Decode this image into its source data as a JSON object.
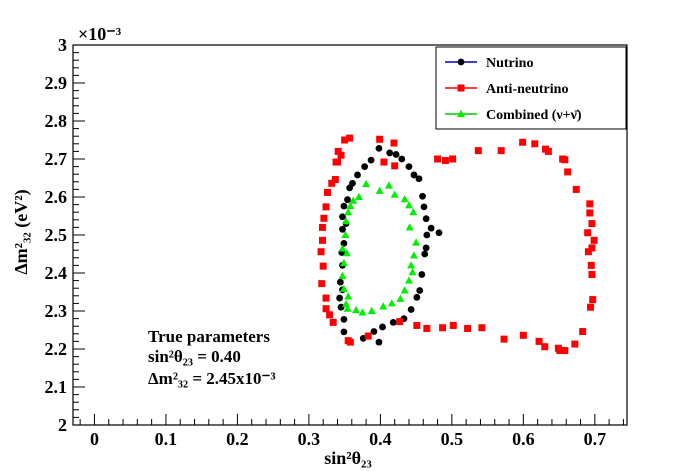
{
  "chart_data": {
    "type": "scatter",
    "xlabel": "sin²θ₂₃",
    "ylabel": "Δm²₃₂ (eV²)",
    "y_multiplier": "×10⁻³",
    "xlim": [
      -0.03,
      0.745
    ],
    "ylim": [
      2.0,
      3.0
    ],
    "x_ticks": [
      "0",
      "0.1",
      "0.2",
      "0.3",
      "0.4",
      "0.5",
      "0.6",
      "0.7"
    ],
    "x_tick_values": [
      0,
      0.1,
      0.2,
      0.3,
      0.4,
      0.5,
      0.6,
      0.7
    ],
    "y_ticks": [
      "2",
      "2.1",
      "2.2",
      "2.3",
      "2.4",
      "2.5",
      "2.6",
      "2.7",
      "2.8",
      "2.9",
      "3"
    ],
    "y_tick_values": [
      2.0,
      2.1,
      2.2,
      2.3,
      2.4,
      2.5,
      2.6,
      2.7,
      2.8,
      2.9,
      3.0
    ],
    "legend": {
      "position": "top-right",
      "entries": [
        "Nutrino",
        "Anti-neutrino",
        "Combined (ν+ν̄)"
      ]
    },
    "annotation": {
      "title": "True parameters",
      "line1": "sin²θ₂₃ = 0.40",
      "line2": "Δm²₃₂ = 2.45x10⁻³"
    },
    "series": [
      {
        "name": "Nutrino",
        "marker": "circle",
        "color": "#000000",
        "legend_line_color": "#0000cc",
        "points": [
          [
            0.398,
            2.728
          ],
          [
            0.413,
            2.716
          ],
          [
            0.422,
            2.712
          ],
          [
            0.43,
            2.7
          ],
          [
            0.387,
            2.697
          ],
          [
            0.44,
            2.68
          ],
          [
            0.378,
            2.68
          ],
          [
            0.368,
            2.658
          ],
          [
            0.447,
            2.658
          ],
          [
            0.454,
            2.648
          ],
          [
            0.361,
            2.636
          ],
          [
            0.357,
            2.624
          ],
          [
            0.459,
            2.602
          ],
          [
            0.354,
            2.593
          ],
          [
            0.461,
            2.574
          ],
          [
            0.349,
            2.576
          ],
          [
            0.347,
            2.548
          ],
          [
            0.464,
            2.543
          ],
          [
            0.352,
            2.53
          ],
          [
            0.347,
            2.515
          ],
          [
            0.482,
            2.506
          ],
          [
            0.471,
            2.518
          ],
          [
            0.465,
            2.5
          ],
          [
            0.349,
            2.478
          ],
          [
            0.464,
            2.466
          ],
          [
            0.346,
            2.454
          ],
          [
            0.462,
            2.45
          ],
          [
            0.347,
            2.42
          ],
          [
            0.458,
            2.396
          ],
          [
            0.344,
            2.376
          ],
          [
            0.347,
            2.356
          ],
          [
            0.455,
            2.354
          ],
          [
            0.343,
            2.334
          ],
          [
            0.451,
            2.336
          ],
          [
            0.345,
            2.31
          ],
          [
            0.443,
            2.304
          ],
          [
            0.349,
            2.278
          ],
          [
            0.433,
            2.28
          ],
          [
            0.418,
            2.27
          ],
          [
            0.403,
            2.258
          ],
          [
            0.349,
            2.245
          ],
          [
            0.391,
            2.246
          ],
          [
            0.376,
            2.228
          ],
          [
            0.398,
            2.218
          ]
        ]
      },
      {
        "name": "Anti-neutrino",
        "marker": "square",
        "color": "#ff0000",
        "legend_line_color": "#ff0000",
        "points": [
          [
            0.35,
            2.75
          ],
          [
            0.357,
            2.755
          ],
          [
            0.399,
            2.752
          ],
          [
            0.419,
            2.742
          ],
          [
            0.345,
            2.71
          ],
          [
            0.34,
            2.692
          ],
          [
            0.405,
            2.692
          ],
          [
            0.42,
            2.682
          ],
          [
            0.48,
            2.7
          ],
          [
            0.491,
            2.696
          ],
          [
            0.501,
            2.7
          ],
          [
            0.537,
            2.722
          ],
          [
            0.569,
            2.722
          ],
          [
            0.599,
            2.744
          ],
          [
            0.616,
            2.74
          ],
          [
            0.635,
            2.72
          ],
          [
            0.655,
            2.7
          ],
          [
            0.658,
            2.698
          ],
          [
            0.631,
            2.726
          ],
          [
            0.662,
            2.666
          ],
          [
            0.674,
            2.62
          ],
          [
            0.693,
            2.582
          ],
          [
            0.693,
            2.558
          ],
          [
            0.696,
            2.53
          ],
          [
            0.69,
            2.506
          ],
          [
            0.699,
            2.486
          ],
          [
            0.696,
            2.466
          ],
          [
            0.691,
            2.456
          ],
          [
            0.695,
            2.42
          ],
          [
            0.696,
            2.396
          ],
          [
            0.697,
            2.33
          ],
          [
            0.694,
            2.31
          ],
          [
            0.683,
            2.246
          ],
          [
            0.672,
            2.213
          ],
          [
            0.651,
            2.196
          ],
          [
            0.658,
            2.196
          ],
          [
            0.63,
            2.206
          ],
          [
            0.649,
            2.202
          ],
          [
            0.622,
            2.22
          ],
          [
            0.6,
            2.236
          ],
          [
            0.522,
            2.254
          ],
          [
            0.542,
            2.256
          ],
          [
            0.573,
            2.226
          ],
          [
            0.502,
            2.262
          ],
          [
            0.487,
            2.256
          ],
          [
            0.465,
            2.254
          ],
          [
            0.451,
            2.262
          ],
          [
            0.427,
            2.272
          ],
          [
            0.383,
            2.234
          ],
          [
            0.358,
            2.218
          ],
          [
            0.355,
            2.222
          ],
          [
            0.334,
            2.27
          ],
          [
            0.329,
            2.29
          ],
          [
            0.324,
            2.306
          ],
          [
            0.324,
            2.334
          ],
          [
            0.318,
            2.372
          ],
          [
            0.32,
            2.418
          ],
          [
            0.317,
            2.456
          ],
          [
            0.319,
            2.486
          ],
          [
            0.319,
            2.52
          ],
          [
            0.321,
            2.544
          ],
          [
            0.324,
            2.574
          ],
          [
            0.326,
            2.612
          ],
          [
            0.332,
            2.636
          ],
          [
            0.337,
            2.646
          ],
          [
            0.338,
            2.692
          ],
          [
            0.341,
            2.72
          ]
        ]
      },
      {
        "name": "Combined (ν+ν̄)",
        "marker": "triangle",
        "color": "#00ee00",
        "legend_line_color": "#00cc00",
        "points": [
          [
            0.38,
            2.634
          ],
          [
            0.399,
            2.616
          ],
          [
            0.412,
            2.63
          ],
          [
            0.42,
            2.606
          ],
          [
            0.37,
            2.6
          ],
          [
            0.434,
            2.594
          ],
          [
            0.362,
            2.59
          ],
          [
            0.44,
            2.578
          ],
          [
            0.355,
            2.56
          ],
          [
            0.358,
            2.576
          ],
          [
            0.446,
            2.56
          ],
          [
            0.352,
            2.536
          ],
          [
            0.441,
            2.52
          ],
          [
            0.351,
            2.5
          ],
          [
            0.45,
            2.48
          ],
          [
            0.347,
            2.464
          ],
          [
            0.353,
            2.452
          ],
          [
            0.447,
            2.446
          ],
          [
            0.349,
            2.426
          ],
          [
            0.443,
            2.42
          ],
          [
            0.445,
            2.402
          ],
          [
            0.347,
            2.392
          ],
          [
            0.44,
            2.38
          ],
          [
            0.349,
            2.358
          ],
          [
            0.434,
            2.354
          ],
          [
            0.355,
            2.338
          ],
          [
            0.428,
            2.332
          ],
          [
            0.416,
            2.32
          ],
          [
            0.404,
            2.312
          ],
          [
            0.352,
            2.318
          ],
          [
            0.354,
            2.306
          ],
          [
            0.388,
            2.3
          ],
          [
            0.375,
            2.296
          ],
          [
            0.366,
            2.302
          ]
        ]
      }
    ]
  }
}
